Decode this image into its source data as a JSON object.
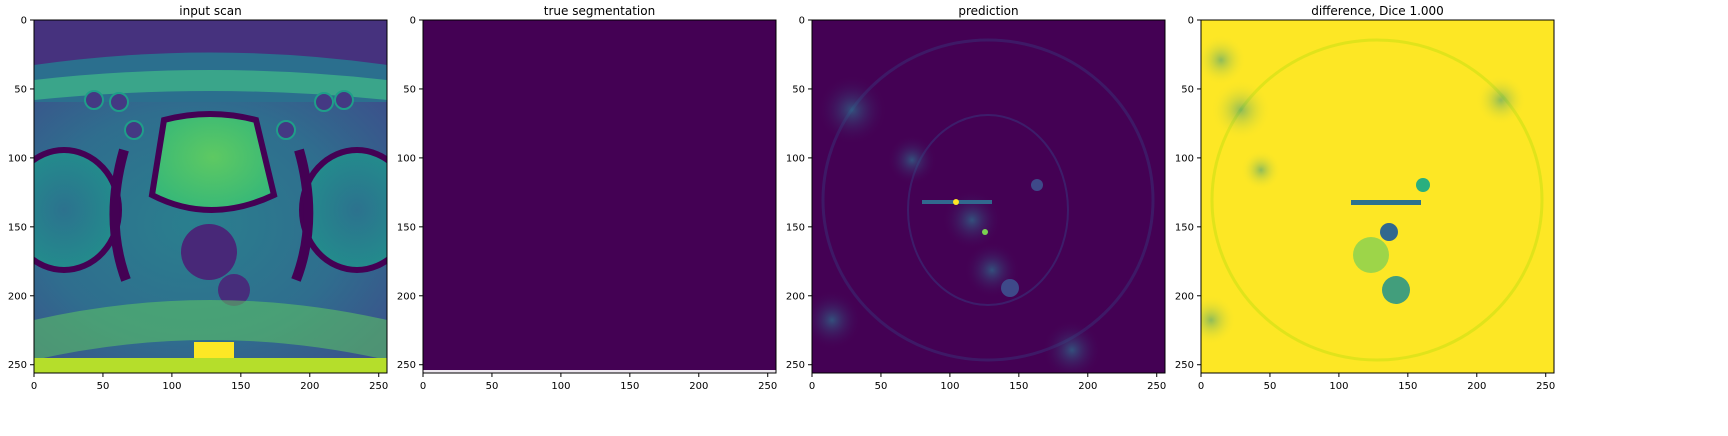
{
  "figure": {
    "panels": [
      {
        "title": "input scan",
        "kind": "mri"
      },
      {
        "title": "true segmentation",
        "kind": "flat"
      },
      {
        "title": "prediction",
        "kind": "pred"
      },
      {
        "title": "difference, Dice 1.000",
        "kind": "diff"
      }
    ],
    "xlim": [
      0,
      256
    ],
    "ylim": [
      256,
      0
    ],
    "xticks": [
      "0",
      "50",
      "100",
      "150",
      "200",
      "250"
    ],
    "yticks": [
      "0",
      "50",
      "100",
      "150",
      "200",
      "250"
    ],
    "colormap": "viridis",
    "colors": {
      "viridis_low": "#440154",
      "viridis_mid": "#21918c",
      "viridis_high": "#fde725",
      "axis": "#000000",
      "background": "#ffffff"
    }
  }
}
